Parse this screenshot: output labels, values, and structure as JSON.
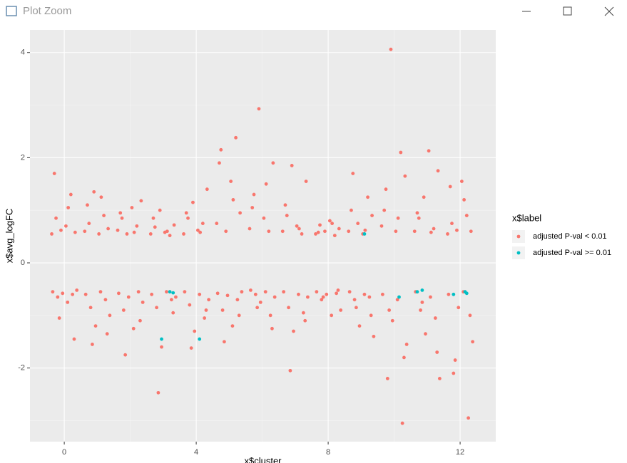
{
  "window": {
    "title": "Plot Zoom"
  },
  "chart_data": {
    "type": "scatter",
    "xlabel": "x$cluster",
    "ylabel": "x$avg_logFC",
    "legend_title": "x$label",
    "legend": "right",
    "grid": true,
    "xlim": [
      -1.04,
      13.08
    ],
    "ylim": [
      -3.4,
      4.43
    ],
    "xticks": [
      0,
      4,
      8,
      12
    ],
    "yticks": [
      -2,
      0,
      2,
      4
    ],
    "xminor": [
      2,
      6,
      10
    ],
    "yminor": [
      -3,
      -1,
      1,
      3
    ],
    "series": [
      {
        "name": "adjusted P-val < 0.01",
        "color": "#F8766D",
        "x": [
          -0.38,
          -0.25,
          -0.1,
          0.05,
          0.2,
          0.33,
          -0.3,
          0.12,
          -0.35,
          -0.2,
          -0.05,
          0.1,
          0.25,
          0.38,
          -0.15,
          0.3,
          0.62,
          0.75,
          0.9,
          1.05,
          1.2,
          1.33,
          0.7,
          1.12,
          0.65,
          0.8,
          0.95,
          1.1,
          1.25,
          1.38,
          0.85,
          1.3,
          1.62,
          1.75,
          1.9,
          2.05,
          2.2,
          2.33,
          1.7,
          2.12,
          1.65,
          1.8,
          1.95,
          2.1,
          2.25,
          2.38,
          1.85,
          2.3,
          2.62,
          2.75,
          2.9,
          3.05,
          3.2,
          3.33,
          2.7,
          3.12,
          2.65,
          2.8,
          2.95,
          3.1,
          3.25,
          3.38,
          2.85,
          3.3,
          3.62,
          3.75,
          3.9,
          4.05,
          4.2,
          4.33,
          3.7,
          4.12,
          3.65,
          3.8,
          3.95,
          4.1,
          4.25,
          4.38,
          3.85,
          4.3,
          4.62,
          4.75,
          4.9,
          5.05,
          5.2,
          5.33,
          4.7,
          5.12,
          4.65,
          4.8,
          4.95,
          5.1,
          5.25,
          5.38,
          4.85,
          5.3,
          5.62,
          5.75,
          5.9,
          6.05,
          6.2,
          6.33,
          5.7,
          6.12,
          5.65,
          5.8,
          5.95,
          6.1,
          6.25,
          6.38,
          5.85,
          6.3,
          6.62,
          6.75,
          6.9,
          7.05,
          7.2,
          7.33,
          6.7,
          7.12,
          6.65,
          6.8,
          6.95,
          7.1,
          7.25,
          7.38,
          6.85,
          7.3,
          7.62,
          7.75,
          7.9,
          8.05,
          8.2,
          8.33,
          7.7,
          8.12,
          7.65,
          7.8,
          7.95,
          8.1,
          8.25,
          8.38,
          7.85,
          8.3,
          8.62,
          8.75,
          8.9,
          9.05,
          9.2,
          9.33,
          8.7,
          9.12,
          8.65,
          8.8,
          8.95,
          9.1,
          9.25,
          9.38,
          8.85,
          9.3,
          9.62,
          9.75,
          9.9,
          10.05,
          10.2,
          10.33,
          9.7,
          10.12,
          9.65,
          9.8,
          9.95,
          10.1,
          10.25,
          10.38,
          9.85,
          10.3,
          10.62,
          10.75,
          10.9,
          11.05,
          11.2,
          11.33,
          10.7,
          11.12,
          10.65,
          10.8,
          10.95,
          11.1,
          11.25,
          11.38,
          10.85,
          11.3,
          11.62,
          11.75,
          11.9,
          12.05,
          12.2,
          12.33,
          11.7,
          12.12,
          11.65,
          11.8,
          11.95,
          12.1,
          12.25,
          12.38,
          11.85,
          12.3
        ],
        "values": [
          0.55,
          0.85,
          0.62,
          0.7,
          1.3,
          0.58,
          1.7,
          1.05,
          -0.55,
          -0.65,
          -0.58,
          -0.75,
          -0.6,
          -0.52,
          -1.05,
          -1.45,
          0.6,
          0.75,
          1.35,
          0.55,
          0.9,
          0.65,
          1.1,
          1.25,
          -0.6,
          -0.85,
          -1.2,
          -0.55,
          -0.7,
          -1.0,
          -1.55,
          -1.35,
          0.62,
          0.85,
          0.55,
          1.05,
          0.7,
          1.18,
          0.95,
          0.58,
          -0.58,
          -0.9,
          -0.65,
          -1.25,
          -0.55,
          -0.75,
          -1.75,
          -1.1,
          0.55,
          0.68,
          1.0,
          0.58,
          0.52,
          0.72,
          0.85,
          0.6,
          -0.6,
          -0.85,
          -1.6,
          -0.55,
          -0.7,
          -0.65,
          -2.47,
          -0.95,
          0.55,
          0.85,
          1.15,
          0.62,
          0.75,
          1.4,
          0.95,
          0.58,
          -0.55,
          -0.8,
          -1.3,
          -0.6,
          -1.05,
          -0.7,
          -1.62,
          -0.9,
          0.75,
          2.15,
          0.6,
          1.55,
          2.38,
          0.95,
          1.9,
          1.2,
          -0.58,
          -0.9,
          -0.62,
          -1.2,
          -0.7,
          -0.55,
          -1.5,
          -1.0,
          0.65,
          1.3,
          2.93,
          0.85,
          0.6,
          1.9,
          1.05,
          1.5,
          -0.52,
          -0.6,
          -0.75,
          -0.55,
          -1.0,
          -0.65,
          -0.85,
          -1.25,
          0.6,
          0.9,
          1.85,
          0.7,
          0.55,
          1.55,
          1.1,
          0.65,
          -0.55,
          -0.85,
          -1.3,
          -0.6,
          -0.95,
          -0.65,
          -2.05,
          -1.1,
          0.55,
          0.72,
          0.6,
          0.8,
          0.52,
          0.65,
          0.58,
          0.75,
          -0.55,
          -0.7,
          -0.6,
          -1.0,
          -0.58,
          -0.9,
          -0.65,
          -0.52,
          0.6,
          1.7,
          0.75,
          0.55,
          1.25,
          0.9,
          1.0,
          0.62,
          -0.55,
          -0.7,
          -1.2,
          -0.6,
          -0.65,
          -1.4,
          -0.85,
          -1.0,
          0.7,
          1.4,
          4.06,
          0.6,
          2.1,
          1.65,
          1.0,
          0.85,
          -0.6,
          -2.2,
          -1.1,
          -0.7,
          -3.05,
          -1.55,
          -0.9,
          -1.8,
          0.6,
          0.85,
          1.25,
          2.13,
          0.65,
          1.75,
          0.95,
          0.58,
          -0.55,
          -0.9,
          -1.35,
          -0.65,
          -1.05,
          -2.2,
          -0.75,
          -1.7,
          0.55,
          0.75,
          0.62,
          1.55,
          0.9,
          0.6,
          1.45,
          1.2,
          -0.6,
          -2.1,
          -0.85,
          -0.55,
          -2.95,
          -1.5,
          -1.85,
          -1.0
        ]
      },
      {
        "name": "adjusted P-val >= 0.01",
        "color": "#00BFC4",
        "x": [
          9.1,
          3.2,
          3.3,
          2.95,
          4.1,
          10.15,
          10.7,
          10.85,
          11.8,
          12.15,
          12.2
        ],
        "values": [
          0.55,
          -0.55,
          -0.57,
          -1.45,
          -1.45,
          -0.65,
          -0.55,
          -0.52,
          -0.6,
          -0.55,
          -0.58
        ]
      }
    ]
  }
}
